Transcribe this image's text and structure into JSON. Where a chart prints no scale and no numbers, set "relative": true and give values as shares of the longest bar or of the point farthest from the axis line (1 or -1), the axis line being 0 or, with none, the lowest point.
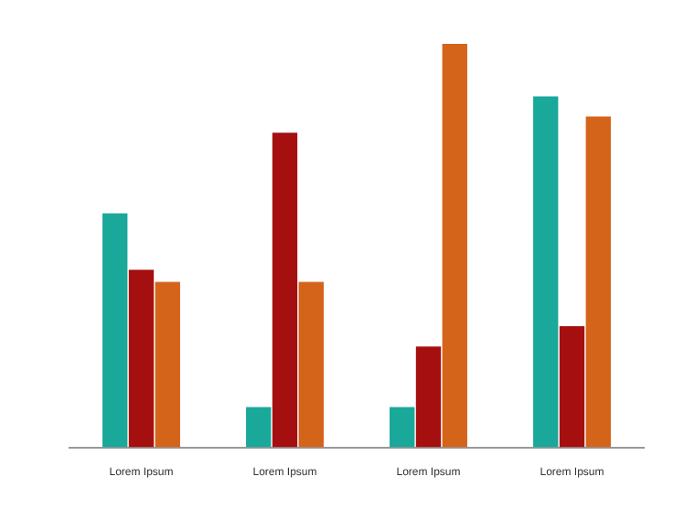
{
  "chart_data": {
    "type": "bar",
    "relative": true,
    "categories": [
      "Lorem Ipsum",
      "Lorem Ipsum",
      "Lorem Ipsum",
      "Lorem Ipsum"
    ],
    "series": [
      {
        "color": "#1aa89a",
        "values": [
          0.58,
          0.1,
          0.1,
          0.87
        ]
      },
      {
        "color": "#a50f0f",
        "values": [
          0.44,
          0.78,
          0.25,
          0.3
        ]
      },
      {
        "color": "#d4641a",
        "values": [
          0.41,
          0.41,
          1,
          0.82
        ]
      }
    ],
    "grid": false,
    "legend": false
  }
}
